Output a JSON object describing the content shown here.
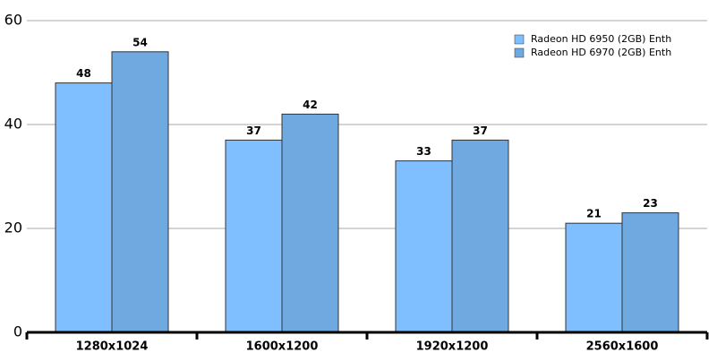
{
  "chart_data": {
    "type": "bar",
    "categories": [
      "1280x1024",
      "1600x1200",
      "1920x1200",
      "2560x1600"
    ],
    "series": [
      {
        "name": "Radeon HD 6950 (2GB) Enth",
        "color": "#80bfff",
        "values": [
          48,
          37,
          33,
          21
        ]
      },
      {
        "name": "Radeon HD 6970 (2GB) Enth",
        "color": "#70a8e0",
        "values": [
          54,
          42,
          37,
          23
        ]
      }
    ],
    "ylim": [
      0,
      60
    ],
    "yticks": [
      0,
      20,
      40,
      60
    ],
    "grid": true,
    "legend": "top-right"
  }
}
